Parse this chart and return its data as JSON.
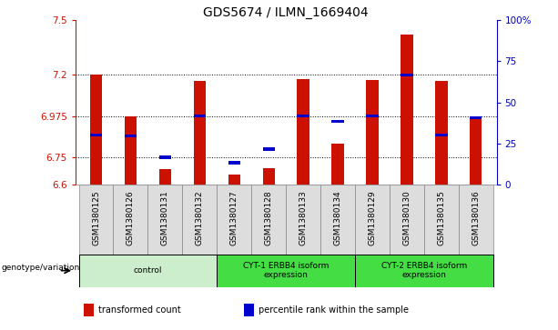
{
  "title": "GDS5674 / ILMN_1669404",
  "samples": [
    "GSM1380125",
    "GSM1380126",
    "GSM1380131",
    "GSM1380132",
    "GSM1380127",
    "GSM1380128",
    "GSM1380133",
    "GSM1380134",
    "GSM1380129",
    "GSM1380130",
    "GSM1380135",
    "GSM1380136"
  ],
  "red_values": [
    7.2,
    6.975,
    6.685,
    7.165,
    6.655,
    6.69,
    7.175,
    6.825,
    7.17,
    7.42,
    7.165,
    6.97
  ],
  "blue_values": [
    6.87,
    6.865,
    6.75,
    6.975,
    6.72,
    6.795,
    6.975,
    6.945,
    6.975,
    7.2,
    6.87,
    6.965
  ],
  "ymin": 6.6,
  "ymax": 7.5,
  "yticks": [
    6.6,
    6.75,
    6.975,
    7.2,
    7.5
  ],
  "ytick_labels": [
    "6.6",
    "6.75",
    "6.975",
    "7.2",
    "7.5"
  ],
  "right_yticks": [
    0,
    25,
    50,
    75,
    100
  ],
  "right_ytick_labels": [
    "0",
    "25",
    "50",
    "75",
    "100%"
  ],
  "grid_lines": [
    6.75,
    6.975,
    7.2
  ],
  "bar_color": "#cc1100",
  "blue_color": "#0000cc",
  "bar_width": 0.35,
  "groups": [
    {
      "label": "control",
      "start": 0,
      "end": 3,
      "color": "#cceecc"
    },
    {
      "label": "CYT-1 ERBB4 isoform\nexpression",
      "start": 4,
      "end": 7,
      "color": "#44dd44"
    },
    {
      "label": "CYT-2 ERBB4 isoform\nexpression",
      "start": 8,
      "end": 11,
      "color": "#44dd44"
    }
  ],
  "legend_items": [
    {
      "color": "#cc1100",
      "label": "transformed count"
    },
    {
      "color": "#0000cc",
      "label": "percentile rank within the sample"
    }
  ],
  "genotype_label": "genotype/variation",
  "title_fontsize": 10,
  "tick_fontsize": 7.5,
  "label_fontsize": 6.5,
  "left_axis_color": "#cc1100",
  "right_axis_color": "#0000bb",
  "background_color": "#ffffff",
  "cell_color": "#dddddd",
  "border_color": "#888888"
}
